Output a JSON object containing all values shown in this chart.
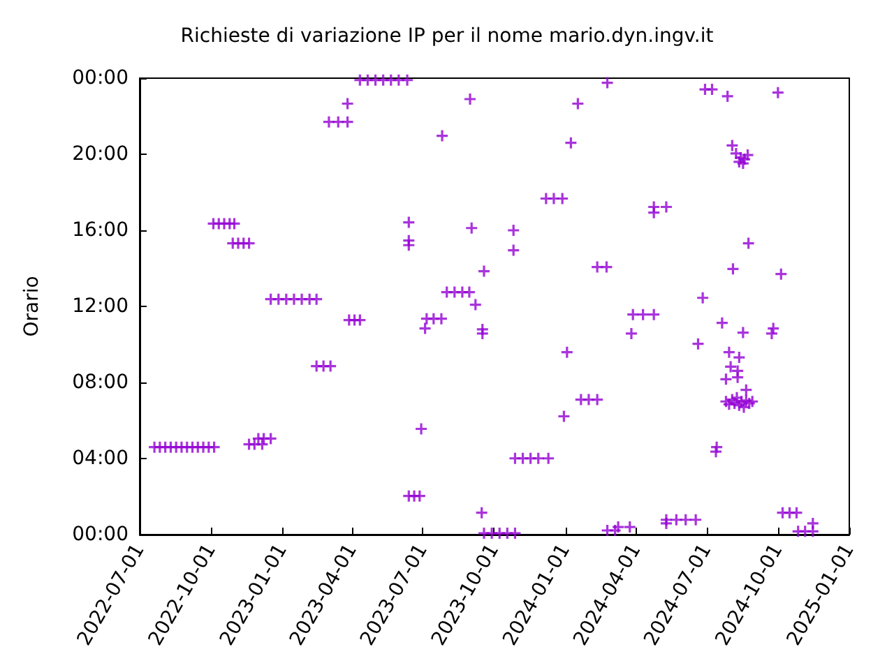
{
  "chart_data": {
    "type": "scatter",
    "title": "Richieste di variazione IP per il nome mario.dyn.ingv.it",
    "ylabel": "Orario",
    "marker": "cross",
    "grid": false,
    "xlim": [
      "2022-07-01",
      "2025-01-01"
    ],
    "xticks": [
      "2022-07-01",
      "2022-10-01",
      "2023-01-01",
      "2023-04-01",
      "2023-07-01",
      "2023-10-01",
      "2024-01-01",
      "2024-04-01",
      "2024-07-01",
      "2024-10-01",
      "2025-01-01"
    ],
    "ylim": [
      0,
      24
    ],
    "yticks": [
      {
        "value": 0,
        "label": "00:00"
      },
      {
        "value": 4,
        "label": "04:00"
      },
      {
        "value": 8,
        "label": "08:00"
      },
      {
        "value": 12,
        "label": "12:00"
      },
      {
        "value": 16,
        "label": "16:00"
      },
      {
        "value": 20,
        "label": "20:00"
      },
      {
        "value": 24,
        "label": "00:00"
      }
    ],
    "series": [
      {
        "color": "#9400d3",
        "x": [
          "2022-07-20",
          "2022-07-27",
          "2022-08-03",
          "2022-08-10",
          "2022-08-17",
          "2022-08-24",
          "2022-08-31",
          "2022-09-07",
          "2022-09-14",
          "2022-09-21",
          "2022-09-28",
          "2022-10-05",
          "2022-10-04",
          "2022-10-11",
          "2022-10-18",
          "2022-10-25",
          "2022-10-31",
          "2022-10-29",
          "2022-11-05",
          "2022-11-12",
          "2022-11-19",
          "2022-11-19",
          "2022-11-26",
          "2022-12-06",
          "2022-12-01",
          "2022-12-08",
          "2022-12-17",
          "2022-12-17",
          "2022-12-27",
          "2023-01-06",
          "2023-01-16",
          "2023-01-26",
          "2023-02-05",
          "2023-02-14",
          "2023-02-14",
          "2023-02-23",
          "2023-03-04",
          "2023-03-02",
          "2023-03-14",
          "2023-03-26",
          "2023-03-26",
          "2023-03-28",
          "2023-04-04",
          "2023-04-11",
          "2023-04-11",
          "2023-04-21",
          "2023-05-01",
          "2023-05-11",
          "2023-05-21",
          "2023-05-31",
          "2023-06-11",
          "2023-06-13",
          "2023-06-20",
          "2023-06-27",
          "2023-06-13",
          "2023-06-13",
          "2023-06-13",
          "2023-06-29",
          "2023-07-04",
          "2023-07-06",
          "2023-07-15",
          "2023-07-25",
          "2023-07-26",
          "2023-08-01",
          "2023-08-11",
          "2023-08-21",
          "2023-08-30",
          "2023-08-31",
          "2023-09-02",
          "2023-09-07",
          "2023-09-15",
          "2023-09-16",
          "2023-09-16",
          "2023-09-18",
          "2023-09-18",
          "2023-09-28",
          "2023-10-08",
          "2023-10-18",
          "2023-10-28",
          "2023-10-26",
          "2023-10-26",
          "2023-10-28",
          "2023-11-07",
          "2023-11-17",
          "2023-11-27",
          "2023-12-10",
          "2023-12-07",
          "2023-12-17",
          "2023-12-28",
          "2023-12-30",
          "2024-01-03",
          "2024-01-08",
          "2024-01-17",
          "2024-01-21",
          "2024-01-31",
          "2024-02-11",
          "2024-02-11",
          "2024-02-23",
          "2024-02-24",
          "2024-02-24",
          "2024-03-05",
          "2024-03-09",
          "2024-03-24",
          "2024-03-26",
          "2024-03-28",
          "2024-04-10",
          "2024-04-24",
          "2024-04-24",
          "2024-05-10",
          "2024-04-24",
          "2024-05-10",
          "2024-05-23",
          "2024-06-04",
          "2024-06-17",
          "2024-05-10",
          "2024-06-20",
          "2024-06-26",
          "2024-06-29",
          "2024-07-08",
          "2024-07-14",
          "2024-07-13",
          "2024-07-21",
          "2024-07-28",
          "2024-08-03",
          "2024-08-08",
          "2024-08-14",
          "2024-08-19",
          "2024-08-23",
          "2024-08-12",
          "2024-08-17",
          "2024-07-30",
          "2024-08-12",
          "2024-08-01",
          "2024-08-10",
          "2024-07-26",
          "2024-08-10",
          "2024-08-21",
          "2024-08-04",
          "2024-08-17",
          "2024-08-24",
          "2024-07-26",
          "2024-07-30",
          "2024-08-03",
          "2024-08-06",
          "2024-08-09",
          "2024-08-12",
          "2024-08-15",
          "2024-08-18",
          "2024-08-21",
          "2024-08-25",
          "2024-08-29",
          "2024-09-25",
          "2024-09-23",
          "2024-10-01",
          "2024-10-05",
          "2024-10-07",
          "2024-10-16",
          "2024-10-25",
          "2024-10-27",
          "2024-11-05",
          "2024-11-15",
          "2024-11-15"
        ],
        "values": [
          4.6,
          4.6,
          4.6,
          4.6,
          4.6,
          4.6,
          4.6,
          4.6,
          4.6,
          4.6,
          4.6,
          4.6,
          16.35,
          16.35,
          16.35,
          16.35,
          16.35,
          15.32,
          15.32,
          15.32,
          15.32,
          4.75,
          4.75,
          4.75,
          5.05,
          5.05,
          5.05,
          12.38,
          12.38,
          12.38,
          12.38,
          12.38,
          12.38,
          12.38,
          8.86,
          8.86,
          8.86,
          21.7,
          21.7,
          21.7,
          22.66,
          11.28,
          11.28,
          11.28,
          23.9,
          23.9,
          23.9,
          23.9,
          23.9,
          23.9,
          23.9,
          2.03,
          2.03,
          2.03,
          16.42,
          15.46,
          15.22,
          5.56,
          10.84,
          11.35,
          11.35,
          11.35,
          20.97,
          12.75,
          12.75,
          12.75,
          12.75,
          22.9,
          16.12,
          12.09,
          1.15,
          10.79,
          10.57,
          13.85,
          0.07,
          0.07,
          0.07,
          0.07,
          0.07,
          16.0,
          14.95,
          4.01,
          4.01,
          4.01,
          4.01,
          4.01,
          17.67,
          17.67,
          17.67,
          6.22,
          9.59,
          20.6,
          22.66,
          7.1,
          7.1,
          7.1,
          14.07,
          14.07,
          23.76,
          0.22,
          0.22,
          0.4,
          0.4,
          10.57,
          11.57,
          11.57,
          11.57,
          17.23,
          17.23,
          16.93,
          0.78,
          0.78,
          0.78,
          0.78,
          0.59,
          10.03,
          12.45,
          23.41,
          23.41,
          4.6,
          4.36,
          11.13,
          23.05,
          20.46,
          20.04,
          19.82,
          19.74,
          19.96,
          19.6,
          19.52,
          9.59,
          9.32,
          8.83,
          8.61,
          8.17,
          8.27,
          7.61,
          13.97,
          10.62,
          15.32,
          7.0,
          6.85,
          7.1,
          6.9,
          7.2,
          6.8,
          7.0,
          6.7,
          7.05,
          6.9,
          7.0,
          10.84,
          10.57,
          23.24,
          13.7,
          1.15,
          1.15,
          1.15,
          0.17,
          0.17,
          0.17,
          0.59
        ]
      }
    ]
  }
}
